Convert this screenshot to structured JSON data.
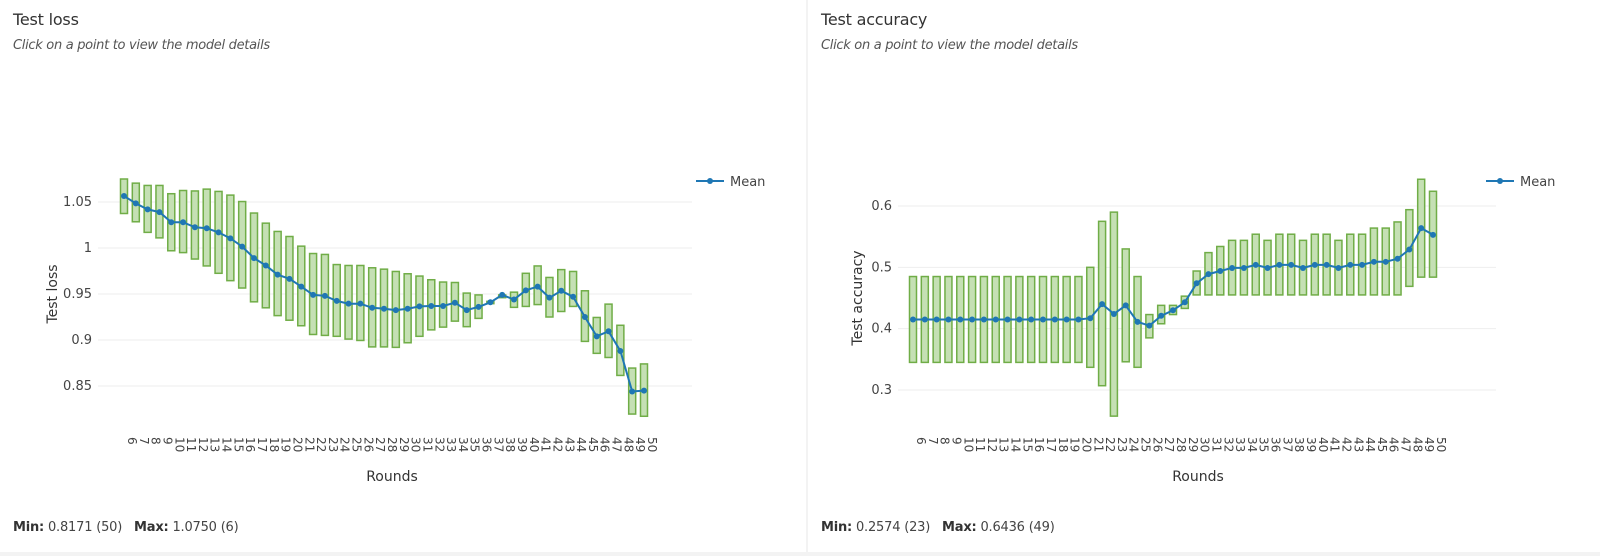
{
  "panels": [
    {
      "title": "Test loss",
      "subtitle": "Click on a point to view the model details",
      "stats": {
        "min_label": "Min:",
        "min_value": "0.8171 (50)",
        "max_label": "Max:",
        "max_value": "1.0750 (6)"
      }
    },
    {
      "title": "Test accuracy",
      "subtitle": "Click on a point to view the model details",
      "stats": {
        "min_label": "Min:",
        "min_value": "0.2574 (23)",
        "max_label": "Max:",
        "max_value": "0.6436 (49)"
      }
    }
  ],
  "colors": {
    "box_fill": "#c5e0b4",
    "box_stroke": "#70ad47",
    "mean_line": "#1f77b4",
    "grid": "#eeeeee"
  },
  "chart_data": [
    {
      "type": "box-range-with-line",
      "title": "Test loss",
      "xlabel": "Rounds",
      "ylabel": "Test loss",
      "legend": [
        "Mean"
      ],
      "legend_position": "top-right",
      "grid": true,
      "yticks": [
        0.85,
        0.9,
        0.95,
        1,
        1.05
      ],
      "ytick_labels": [
        "0.85",
        "0.9",
        "0.95",
        "1",
        "1.05"
      ],
      "ylim": [
        0.8,
        1.085
      ],
      "x": [
        6,
        7,
        8,
        9,
        10,
        11,
        12,
        13,
        14,
        15,
        16,
        17,
        18,
        19,
        20,
        21,
        22,
        23,
        24,
        25,
        26,
        27,
        28,
        29,
        30,
        31,
        32,
        33,
        34,
        35,
        36,
        37,
        38,
        39,
        40,
        41,
        42,
        43,
        44,
        45,
        46,
        47,
        48,
        49,
        50
      ],
      "series": [
        {
          "name": "Mean",
          "values": [
            1.0565,
            1.0485,
            1.042,
            1.039,
            1.028,
            1.028,
            1.0225,
            1.0215,
            1.017,
            1.0105,
            1.0015,
            0.989,
            0.981,
            0.971,
            0.9665,
            0.958,
            0.949,
            0.948,
            0.9425,
            0.9395,
            0.9395,
            0.935,
            0.934,
            0.9325,
            0.934,
            0.9365,
            0.937,
            0.937,
            0.9405,
            0.9325,
            0.936,
            0.941,
            0.949,
            0.944,
            0.954,
            0.958,
            0.946,
            0.9535,
            0.947,
            0.925,
            0.904,
            0.9095,
            0.888,
            0.844,
            0.845
          ]
        },
        {
          "name": "Max",
          "values": [
            1.075,
            1.0705,
            1.068,
            1.068,
            1.059,
            1.0625,
            1.062,
            1.064,
            1.0615,
            1.0575,
            1.0505,
            1.038,
            1.027,
            1.018,
            1.0125,
            1.002,
            0.994,
            0.993,
            0.982,
            0.981,
            0.981,
            0.9785,
            0.977,
            0.9745,
            0.972,
            0.9695,
            0.9655,
            0.963,
            0.9625,
            0.951,
            0.949,
            0.942,
            0.949,
            0.952,
            0.9725,
            0.9805,
            0.968,
            0.9765,
            0.9745,
            0.9535,
            0.9245,
            0.939,
            0.916,
            0.8695,
            0.874
          ]
        },
        {
          "name": "Min",
          "values": [
            1.0375,
            1.0285,
            1.017,
            1.011,
            0.997,
            0.995,
            0.988,
            0.9805,
            0.9725,
            0.9645,
            0.9565,
            0.9415,
            0.935,
            0.9265,
            0.9215,
            0.9155,
            0.906,
            0.905,
            0.904,
            0.901,
            0.8995,
            0.8925,
            0.8925,
            0.892,
            0.897,
            0.904,
            0.911,
            0.914,
            0.9205,
            0.9145,
            0.9235,
            0.9395,
            0.946,
            0.9355,
            0.9365,
            0.9385,
            0.925,
            0.931,
            0.9365,
            0.8985,
            0.8855,
            0.881,
            0.8615,
            0.8195,
            0.8171
          ]
        }
      ]
    },
    {
      "type": "box-range-with-line",
      "title": "Test accuracy",
      "xlabel": "Rounds",
      "ylabel": "Test accuracy",
      "legend": [
        "Mean"
      ],
      "legend_position": "top-right",
      "grid": true,
      "yticks": [
        0.3,
        0.4,
        0.5,
        0.6
      ],
      "ytick_labels": [
        "0.3",
        "0.4",
        "0.5",
        "0.6"
      ],
      "ylim": [
        0.24,
        0.66
      ],
      "x": [
        6,
        7,
        8,
        9,
        10,
        11,
        12,
        13,
        14,
        15,
        16,
        17,
        18,
        19,
        20,
        21,
        22,
        23,
        24,
        25,
        26,
        27,
        28,
        29,
        30,
        31,
        32,
        33,
        34,
        35,
        36,
        37,
        38,
        39,
        40,
        41,
        42,
        43,
        44,
        45,
        46,
        47,
        48,
        49,
        50
      ],
      "series": [
        {
          "name": "Mean",
          "values": [
            0.415,
            0.415,
            0.415,
            0.415,
            0.415,
            0.415,
            0.415,
            0.415,
            0.415,
            0.415,
            0.415,
            0.415,
            0.415,
            0.415,
            0.415,
            0.417,
            0.44,
            0.424,
            0.438,
            0.411,
            0.405,
            0.421,
            0.43,
            0.443,
            0.474,
            0.489,
            0.494,
            0.499,
            0.499,
            0.504,
            0.499,
            0.504,
            0.504,
            0.499,
            0.504,
            0.504,
            0.499,
            0.504,
            0.504,
            0.509,
            0.509,
            0.514,
            0.529,
            0.564,
            0.553
          ]
        },
        {
          "name": "Max",
          "values": [
            0.485,
            0.485,
            0.485,
            0.485,
            0.485,
            0.485,
            0.485,
            0.485,
            0.485,
            0.485,
            0.485,
            0.485,
            0.485,
            0.485,
            0.485,
            0.5,
            0.575,
            0.59,
            0.53,
            0.485,
            0.423,
            0.438,
            0.438,
            0.453,
            0.494,
            0.524,
            0.534,
            0.544,
            0.544,
            0.554,
            0.544,
            0.554,
            0.554,
            0.544,
            0.554,
            0.554,
            0.544,
            0.554,
            0.554,
            0.564,
            0.564,
            0.574,
            0.594,
            0.6436,
            0.624
          ]
        },
        {
          "name": "Min",
          "values": [
            0.345,
            0.345,
            0.345,
            0.345,
            0.345,
            0.345,
            0.345,
            0.345,
            0.345,
            0.345,
            0.345,
            0.345,
            0.345,
            0.345,
            0.345,
            0.337,
            0.307,
            0.2574,
            0.346,
            0.337,
            0.385,
            0.408,
            0.423,
            0.433,
            0.455,
            0.455,
            0.455,
            0.455,
            0.455,
            0.455,
            0.455,
            0.455,
            0.455,
            0.455,
            0.455,
            0.455,
            0.455,
            0.455,
            0.455,
            0.455,
            0.455,
            0.455,
            0.469,
            0.484,
            0.484
          ]
        }
      ]
    }
  ]
}
